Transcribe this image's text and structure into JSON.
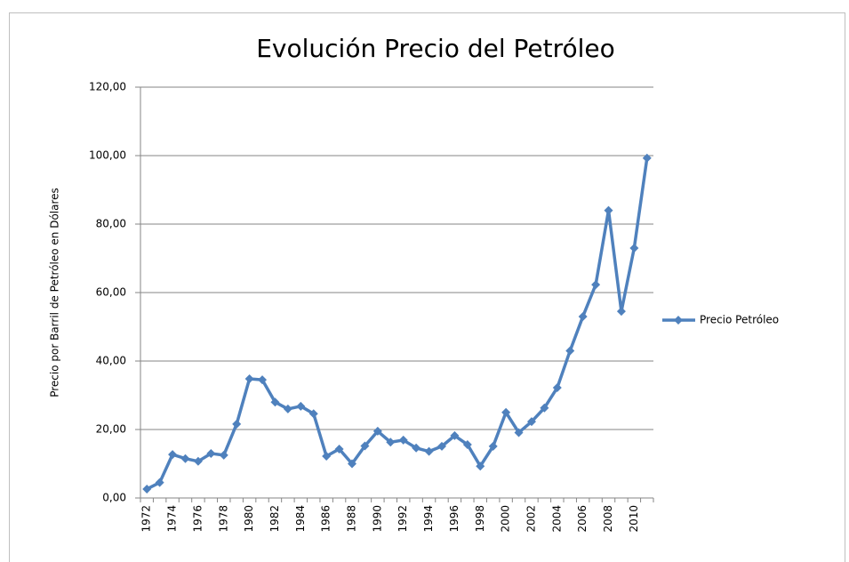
{
  "chart_data": {
    "type": "line",
    "title": "Evolución Precio del Petróleo",
    "y_label": "Precio por Barril de Petróleo en Dólares",
    "categories": [
      "1972",
      null,
      "1974",
      null,
      "1976",
      null,
      "1978",
      null,
      "1980",
      null,
      "1982",
      null,
      "1984",
      null,
      "1986",
      null,
      "1988",
      null,
      "1990",
      null,
      "1992",
      null,
      "1994",
      null,
      "1996",
      null,
      "1998",
      null,
      "2000",
      null,
      "2002",
      null,
      "2004",
      null,
      "2006",
      null,
      "2008",
      null,
      "2010",
      null
    ],
    "series": [
      {
        "name": "Precio Petróleo",
        "color": "#4f81bd",
        "values": [
          2.6,
          4.5,
          12.7,
          11.5,
          10.7,
          13,
          12.5,
          21.6,
          34.8,
          34.5,
          28,
          26,
          26.8,
          24.6,
          12.2,
          14.3,
          10,
          15.2,
          19.5,
          16.3,
          16.9,
          14.6,
          13.6,
          15.1,
          18.2,
          15.6,
          9.3,
          15.1,
          25,
          19.1,
          22.3,
          26.3,
          32.2,
          43,
          53,
          62.3,
          84,
          54.5,
          73,
          99.3
        ]
      }
    ],
    "ylim": [
      0,
      120
    ],
    "yticks": [
      {
        "value": 0,
        "label": "0,00"
      },
      {
        "value": 20,
        "label": "20,00"
      },
      {
        "value": 40,
        "label": "40,00"
      },
      {
        "value": 60,
        "label": "60,00"
      },
      {
        "value": 80,
        "label": "80,00"
      },
      {
        "value": 100,
        "label": "100,00"
      },
      {
        "value": 120,
        "label": "120,00"
      }
    ],
    "grid": true,
    "legend": "right"
  }
}
